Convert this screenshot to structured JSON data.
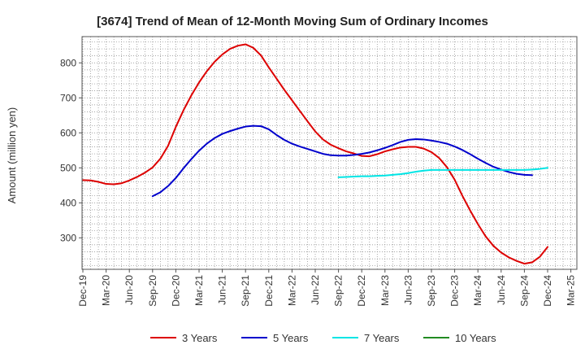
{
  "chart_data": {
    "type": "line",
    "title": "[3674]  Trend of Mean of 12-Month Moving Sum of Ordinary Incomes",
    "xlabel": "",
    "ylabel": "Amount (million yen)",
    "ylim": [
      210,
      875
    ],
    "yticks": [
      300,
      400,
      500,
      600,
      700,
      800
    ],
    "grid": true,
    "legend_position": "bottom",
    "x_tick_labels": [
      "Dec-19",
      "Mar-20",
      "Jun-20",
      "Sep-20",
      "Dec-20",
      "Mar-21",
      "Jun-21",
      "Sep-21",
      "Dec-21",
      "Mar-22",
      "Jun-22",
      "Sep-22",
      "Dec-22",
      "Mar-23",
      "Jun-23",
      "Sep-23",
      "Dec-23",
      "Mar-24",
      "Jun-24",
      "Sep-24",
      "Dec-24",
      "Mar-25"
    ],
    "x_start": "Dec-19",
    "series": [
      {
        "name": "3 Years",
        "color": "#dd0000",
        "start_index": 0,
        "values": [
          465,
          464,
          460,
          454,
          453,
          456,
          464,
          474,
          486,
          501,
          526,
          563,
          617,
          665,
          707,
          744,
          776,
          803,
          824,
          840,
          849,
          853,
          843,
          821,
          787,
          755,
          723,
          693,
          663,
          633,
          604,
          581,
          566,
          556,
          547,
          541,
          534,
          533,
          539,
          547,
          553,
          558,
          560,
          560,
          555,
          545,
          528,
          502,
          466,
          420,
          378,
          339,
          304,
          277,
          258,
          244,
          234,
          226,
          230,
          246,
          274
        ]
      },
      {
        "name": "5 Years",
        "color": "#0000cc",
        "start_index": 9,
        "values": [
          419,
          430,
          448,
          471,
          499,
          525,
          549,
          569,
          585,
          597,
          605,
          612,
          618,
          620,
          619,
          610,
          594,
          580,
          569,
          561,
          554,
          547,
          540,
          536,
          535,
          535,
          537,
          540,
          544,
          550,
          557,
          565,
          574,
          580,
          582,
          581,
          578,
          574,
          569,
          561,
          551,
          539,
          526,
          514,
          503,
          495,
          488,
          483,
          480,
          479
        ]
      },
      {
        "name": "7 Years",
        "color": "#00e5e5",
        "start_index": 33,
        "values": [
          473,
          474,
          475,
          476,
          476,
          477,
          478,
          480,
          482,
          485,
          489,
          492,
          494,
          494,
          494,
          494,
          494,
          494,
          494,
          494,
          494,
          494,
          494,
          494,
          494,
          495,
          497,
          500
        ]
      },
      {
        "name": "10 Years",
        "color": "#228b22",
        "start_index": 0,
        "values": []
      }
    ]
  }
}
